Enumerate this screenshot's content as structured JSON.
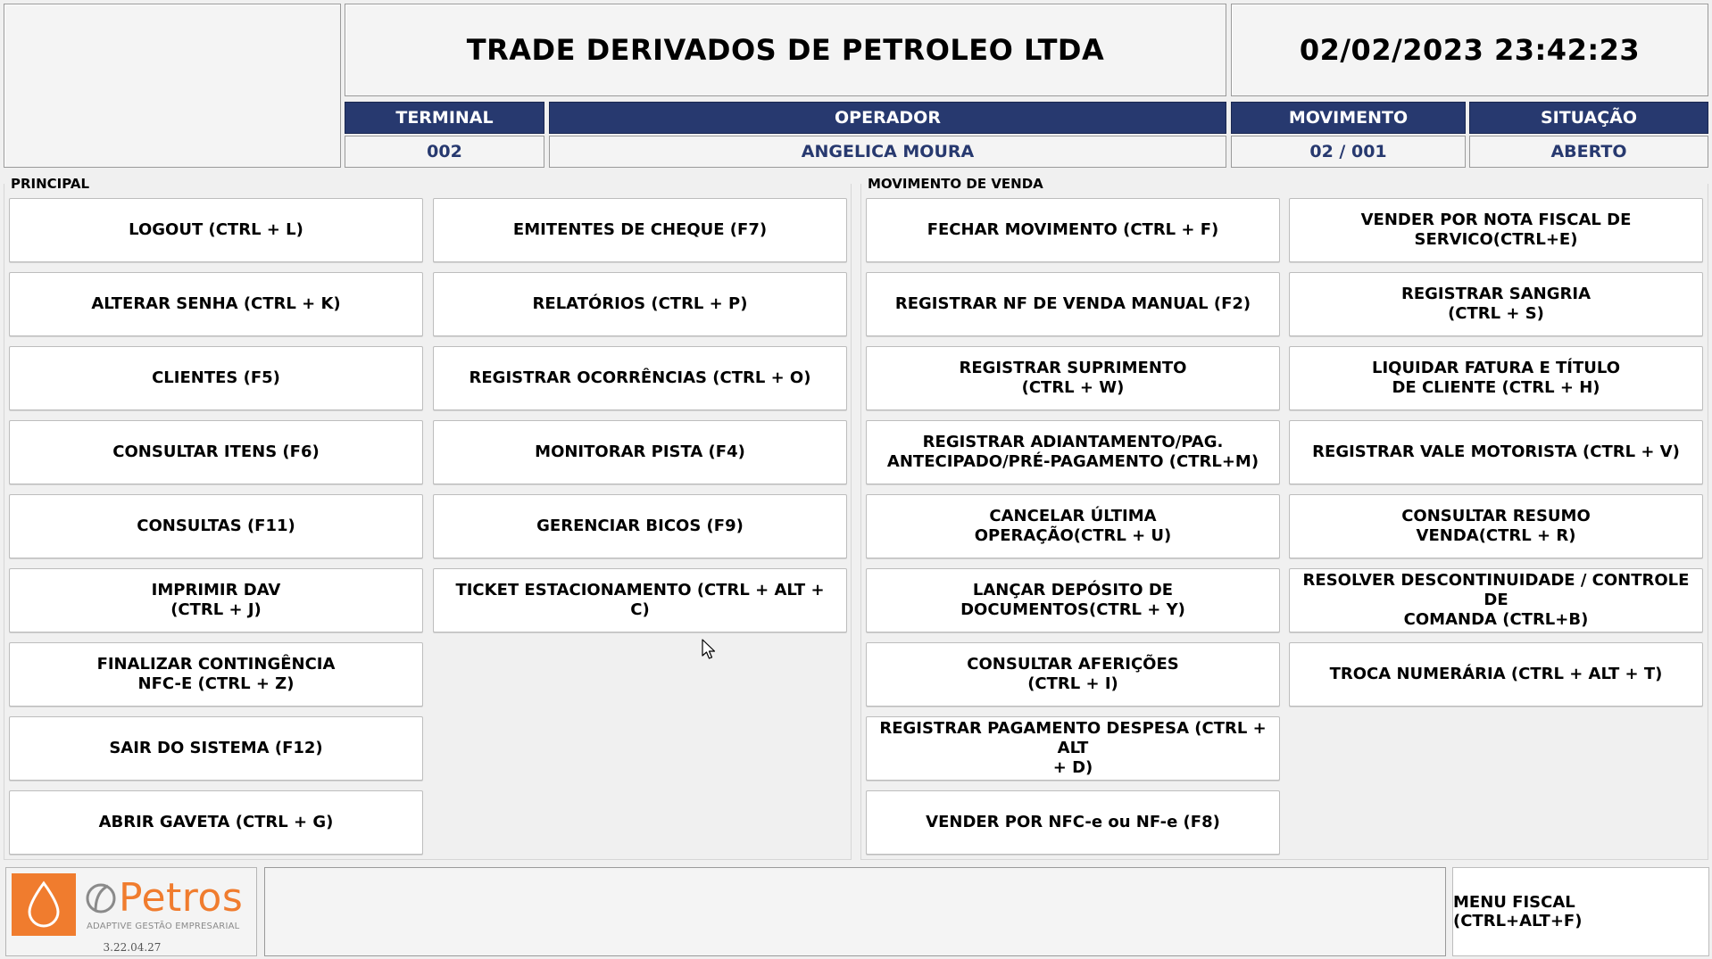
{
  "header": {
    "company_name": "TRADE DERIVADOS DE PETROLEO LTDA",
    "datetime": "02/02/2023 23:42:23",
    "fields": {
      "terminal_label": "TERMINAL",
      "terminal_value": "002",
      "operador_label": "OPERADOR",
      "operador_value": "ANGELICA MOURA",
      "movimento_label": "MOVIMENTO",
      "movimento_value": "02 / 001",
      "situacao_label": "SITUAÇÃO",
      "situacao_value": "ABERTO"
    }
  },
  "principal": {
    "title": "PRINCIPAL",
    "col1": [
      "LOGOUT (CTRL + L)",
      "ALTERAR SENHA (CTRL + K)",
      "CLIENTES (F5)",
      "CONSULTAR ITENS (F6)",
      "CONSULTAS (F11)",
      "IMPRIMIR DAV\n(CTRL + J)",
      "FINALIZAR CONTINGÊNCIA\nNFC-E (CTRL + Z)",
      "SAIR DO SISTEMA (F12)",
      "ABRIR GAVETA (CTRL + G)"
    ],
    "col2": [
      "EMITENTES DE CHEQUE (F7)",
      "RELATÓRIOS (CTRL + P)",
      "REGISTRAR OCORRÊNCIAS (CTRL + O)",
      "MONITORAR PISTA (F4)",
      "GERENCIAR BICOS (F9)",
      "TICKET ESTACIONAMENTO (CTRL + ALT + C)"
    ]
  },
  "movimento_venda": {
    "title": "MOVIMENTO DE VENDA",
    "col1": [
      "FECHAR MOVIMENTO (CTRL + F)",
      "REGISTRAR NF DE VENDA MANUAL (F2)",
      "REGISTRAR SUPRIMENTO\n(CTRL + W)",
      "REGISTRAR ADIANTAMENTO/PAG.\nANTECIPADO/PRÉ-PAGAMENTO (CTRL+M)",
      "CANCELAR ÚLTIMA\nOPERAÇÃO(CTRL + U)",
      "LANÇAR DEPÓSITO DE\nDOCUMENTOS(CTRL + Y)",
      "CONSULTAR AFERIÇÕES\n(CTRL + I)",
      "REGISTRAR PAGAMENTO DESPESA (CTRL + ALT\n+ D)",
      "VENDER POR NFC-e ou NF-e (F8)"
    ],
    "col2": [
      "VENDER POR NOTA FISCAL DE\nSERVICO(CTRL+E)",
      "REGISTRAR SANGRIA\n(CTRL + S)",
      "LIQUIDAR FATURA E TÍTULO\nDE CLIENTE (CTRL + H)",
      "REGISTRAR VALE MOTORISTA (CTRL + V)",
      "CONSULTAR RESUMO\nVENDA(CTRL + R)",
      "RESOLVER DESCONTINUIDADE / CONTROLE DE\nCOMANDA (CTRL+B)",
      "TROCA NUMERÁRIA (CTRL + ALT + T)"
    ]
  },
  "footer": {
    "logo_word": "Petros",
    "logo_tagline": "ADAPTIVE GESTÃO EMPRESARIAL",
    "version": "3.22.04.27",
    "fiscal_menu": "MENU FISCAL (CTRL+ALT+F)"
  },
  "icons": {
    "logo_drop": "water-drop-icon",
    "logo_mark": "petros-leaf-icon",
    "cursor": "mouse-pointer-icon"
  },
  "colors": {
    "header_bg": "#27396f",
    "value_text": "#27396f",
    "brand_orange": "#f07c2e"
  }
}
